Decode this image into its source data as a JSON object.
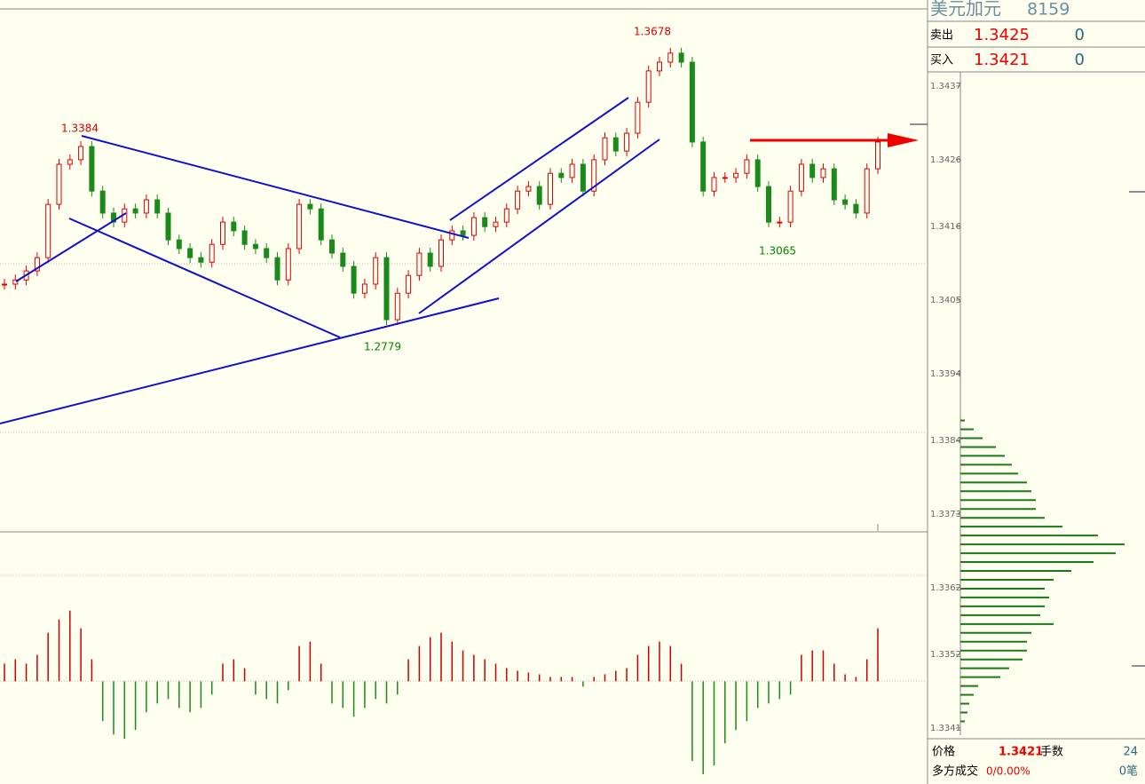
{
  "header": {
    "title": "美元加元",
    "code": "8159"
  },
  "quote": {
    "sell": {
      "label": "卖出",
      "price": "1.3425",
      "volume": "0"
    },
    "buy": {
      "label": "买入",
      "price": "1.3421",
      "volume": "0"
    }
  },
  "price_chart": {
    "type": "candlestick",
    "ylim": [
      1.2158,
      1.3774
    ],
    "closes": [
      1.2922,
      1.2935,
      1.2963,
      1.3004,
      1.3169,
      1.3293,
      1.3307,
      1.3348,
      1.321,
      1.3142,
      1.3114,
      1.3155,
      1.3142,
      1.3183,
      1.3142,
      1.3059,
      1.3032,
      1.3004,
      1.299,
      1.3045,
      1.3114,
      1.3087,
      1.3045,
      1.3032,
      1.3004,
      1.2935,
      1.3032,
      1.3169,
      1.3155,
      1.3059,
      1.3018,
      1.2977,
      1.2894,
      1.2922,
      1.3004,
      1.2812,
      1.2894,
      1.2949,
      1.3018,
      1.2977,
      1.3059,
      1.3087,
      1.3073,
      1.3128,
      1.31,
      1.3114,
      1.3155,
      1.321,
      1.3224,
      1.3169,
      1.3265,
      1.3252,
      1.3293,
      1.321,
      1.3307,
      1.3375,
      1.3334,
      1.3389,
      1.3485,
      1.3582,
      1.3609,
      1.3637,
      1.3609,
      1.3362,
      1.321,
      1.3252,
      1.3252,
      1.3265,
      1.3307,
      1.3224,
      1.3114,
      1.3114,
      1.321,
      1.3293,
      1.3252,
      1.3279,
      1.3183,
      1.3169,
      1.3142,
      1.3279,
      1.3362
    ],
    "annotations": [
      "1.3384",
      "1.3678",
      "1.2779",
      "1.3065"
    ]
  },
  "macd": {
    "ylim": [
      -116,
      169
    ],
    "hist": [
      20,
      25,
      20,
      30,
      55,
      70,
      80,
      60,
      25,
      -45,
      -60,
      -65,
      -55,
      -35,
      -25,
      -20,
      -30,
      -35,
      -30,
      -15,
      20,
      25,
      15,
      -15,
      -20,
      -25,
      -10,
      40,
      45,
      20,
      -25,
      -30,
      -40,
      -30,
      -20,
      -25,
      -15,
      25,
      40,
      50,
      55,
      45,
      35,
      30,
      25,
      20,
      15,
      12,
      10,
      8,
      5,
      5,
      5,
      -6,
      5,
      8,
      12,
      15,
      30,
      40,
      45,
      40,
      20,
      -90,
      -105,
      -95,
      -70,
      -55,
      -45,
      -30,
      -25,
      -20,
      -15,
      30,
      35,
      35,
      20,
      8,
      5,
      25,
      60
    ]
  },
  "profile": {
    "ylim": [
      1.3341,
      1.3437
    ],
    "yticks": [
      1.3437,
      1.3426,
      1.3416,
      1.3405,
      1.3394,
      1.3384,
      1.3373,
      1.3362,
      1.3352,
      1.3341
    ],
    "price_range": [
      1.3342,
      1.3387
    ],
    "xlim": [
      0,
      200
    ],
    "volumes": [
      5,
      8,
      10,
      15,
      20,
      45,
      55,
      70,
      75,
      75,
      80,
      105,
      90,
      95,
      100,
      95,
      105,
      125,
      150,
      175,
      185,
      155,
      115,
      95,
      85,
      85,
      80,
      75,
      65,
      58,
      50,
      40,
      25,
      15,
      5
    ]
  },
  "footer": {
    "price_label": "价格",
    "price": "1.3421",
    "lots_label": "手数",
    "lots": "24",
    "trade_label": "多方成交",
    "trade": "0/0.00%",
    "count": "0笔"
  }
}
